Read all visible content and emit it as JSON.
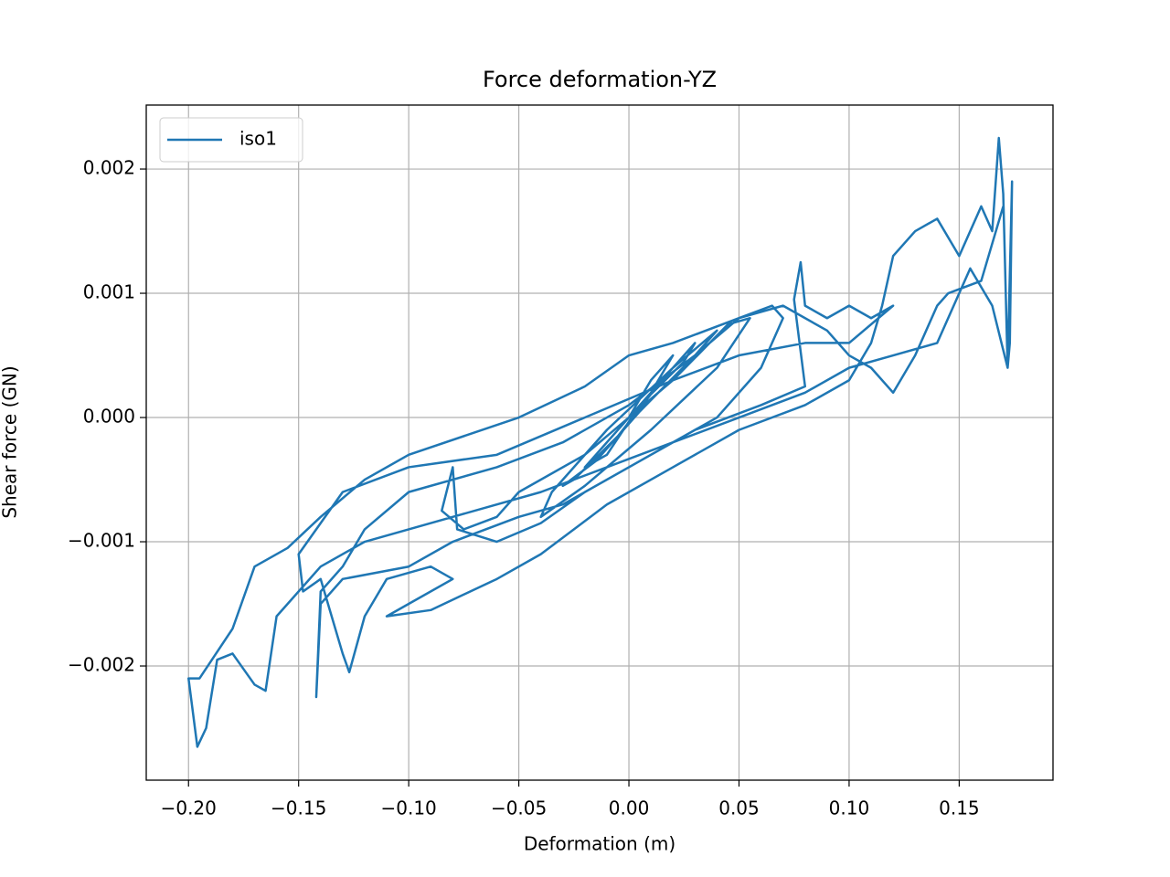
{
  "chart_data": {
    "type": "line",
    "title": "Force deformation-YZ",
    "x_label": "Deformation (m)",
    "y_label": "Shear force (GN)",
    "xlim": [
      -0.2192,
      0.1926
    ],
    "ylim": [
      -0.002919,
      0.002515
    ],
    "xticks": [
      {
        "value": -0.2,
        "label": "−0.20"
      },
      {
        "value": -0.15,
        "label": "−0.15"
      },
      {
        "value": -0.1,
        "label": "−0.10"
      },
      {
        "value": -0.05,
        "label": "−0.05"
      },
      {
        "value": 0,
        "label": "0.00"
      },
      0.05,
      {
        "value": 0.1,
        "label": "0.10"
      },
      0.15
    ],
    "yticks": [
      {
        "value": -0.002,
        "label": "−0.002"
      },
      {
        "value": -0.001,
        "label": "−0.001"
      },
      {
        "value": 0,
        "label": "0.000"
      },
      0.001,
      0.002
    ],
    "grid": true,
    "legend": "upper left",
    "x": [
      0,
      0.01,
      0.02,
      0.01,
      -0.01,
      -0.02,
      -0.01,
      0.005,
      0.025,
      0.03,
      0.015,
      -0.005,
      -0.025,
      -0.03,
      -0.015,
      0.005,
      0.03,
      0.04,
      0.02,
      -0.01,
      -0.035,
      -0.04,
      -0.02,
      0.01,
      0.04,
      0.055,
      0.045,
      0.02,
      -0.02,
      -0.05,
      -0.06,
      -0.075,
      -0.085,
      -0.08,
      -0.078,
      -0.06,
      -0.04,
      -0.02,
      0.01,
      0.04,
      0.06,
      0.07,
      0.065,
      0.05,
      0.03,
      0,
      -0.03,
      -0.06,
      -0.1,
      -0.12,
      -0.13,
      -0.14,
      -0.142,
      -0.14,
      -0.13,
      -0.1,
      -0.08,
      -0.05,
      -0.03,
      0,
      0.03,
      0.06,
      0.08,
      0.075,
      0.078,
      0.08,
      0.09,
      0.1,
      0.11,
      0.12,
      0.1,
      0.08,
      0.05,
      0.02,
      -0.02,
      -0.06,
      -0.1,
      -0.13,
      -0.15,
      -0.148,
      -0.14,
      -0.135,
      -0.13,
      -0.127,
      -0.12,
      -0.11,
      -0.09,
      -0.08,
      -0.1,
      -0.11,
      -0.09,
      -0.06,
      -0.04,
      -0.01,
      0.02,
      0.05,
      0.08,
      0.1,
      0.11,
      0.115,
      0.12,
      0.13,
      0.14,
      0.15,
      0.16,
      0.165,
      0.168,
      0.17,
      0.172,
      0.173,
      0.174,
      0.172,
      0.165,
      0.155,
      0.14,
      0.12,
      0.1,
      0.08,
      0.05,
      0.02,
      -0.01,
      -0.04,
      -0.08,
      -0.12,
      -0.14,
      -0.16,
      -0.165,
      -0.17,
      -0.18,
      -0.187,
      -0.192,
      -0.196,
      -0.2,
      -0.195,
      -0.18,
      -0.17,
      -0.155,
      -0.14,
      -0.12,
      -0.1,
      -0.05,
      -0.02,
      0,
      0.02,
      0.05,
      0.07,
      0.09,
      0.1,
      0.11,
      0.12,
      0.13,
      0.14,
      0.145,
      0.16,
      0.17
    ],
    "series": [
      {
        "name": "iso1",
        "color": "#1f77b4",
        "values": [
          0,
          0.0003,
          0.0005,
          0.0002,
          -0.0002,
          -0.0004,
          -0.0003,
          0.0001,
          0.00045,
          0.0006,
          0.0003,
          -0.00015,
          -0.0005,
          -0.00055,
          -0.00035,
          5e-05,
          0.0005,
          0.0007,
          0.0004,
          -0.0001,
          -0.0006,
          -0.0008,
          -0.00055,
          -0.0001,
          0.0004,
          0.0008,
          0.00075,
          0.0003,
          -0.0003,
          -0.0006,
          -0.0008,
          -0.0009,
          -0.00075,
          -0.0004,
          -0.0009,
          -0.001,
          -0.00085,
          -0.0006,
          -0.0003,
          0,
          0.0004,
          0.0008,
          0.0009,
          0.0008,
          0.0005,
          0.0001,
          -0.0002,
          -0.0004,
          -0.0006,
          -0.0009,
          -0.0012,
          -0.0014,
          -0.00225,
          -0.0015,
          -0.0013,
          -0.0012,
          -0.001,
          -0.0008,
          -0.0007,
          -0.0004,
          -0.0001,
          0.0001,
          0.00025,
          0.00095,
          0.00125,
          0.0009,
          0.0008,
          0.0009,
          0.0008,
          0.0009,
          0.0006,
          0.0006,
          0.0005,
          0.0003,
          0,
          -0.0003,
          -0.0004,
          -0.0006,
          -0.0011,
          -0.0014,
          -0.0013,
          -0.0016,
          -0.0019,
          -0.00205,
          -0.0016,
          -0.0013,
          -0.0012,
          -0.0013,
          -0.0015,
          -0.0016,
          -0.00155,
          -0.0013,
          -0.0011,
          -0.0007,
          -0.0004,
          -0.0001,
          0.0001,
          0.0003,
          0.0006,
          0.0009,
          0.0013,
          0.0015,
          0.0016,
          0.0013,
          0.0017,
          0.0015,
          0.00225,
          0.0018,
          0.0004,
          0.0006,
          0.0019,
          0.0004,
          0.0009,
          0.0012,
          0.0006,
          0.0005,
          0.0004,
          0.0002,
          0,
          -0.0002,
          -0.0004,
          -0.0006,
          -0.0008,
          -0.001,
          -0.0012,
          -0.0016,
          -0.0022,
          -0.00215,
          -0.0019,
          -0.00195,
          -0.0025,
          -0.00265,
          -0.0021,
          -0.0021,
          -0.0017,
          -0.0012,
          -0.00105,
          -0.0008,
          -0.0005,
          -0.0003,
          0,
          0.00025,
          0.0005,
          0.0006,
          0.0008,
          0.0009,
          0.0007,
          0.0005,
          0.0004,
          0.0002,
          0.0005,
          0.0009,
          0.001,
          0.0011,
          0.0017
        ]
      }
    ]
  }
}
